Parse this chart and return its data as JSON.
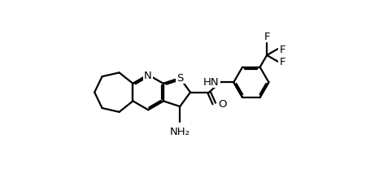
{
  "background_color": "#ffffff",
  "line_color": "#000000",
  "line_width": 1.6,
  "figsize": [
    4.5,
    2.3
  ],
  "dpi": 100,
  "label_N": "N",
  "label_S": "S",
  "label_HN": "HN",
  "label_O": "O",
  "label_NH2": "NH₂",
  "label_F": "F",
  "font_size": 9.5
}
